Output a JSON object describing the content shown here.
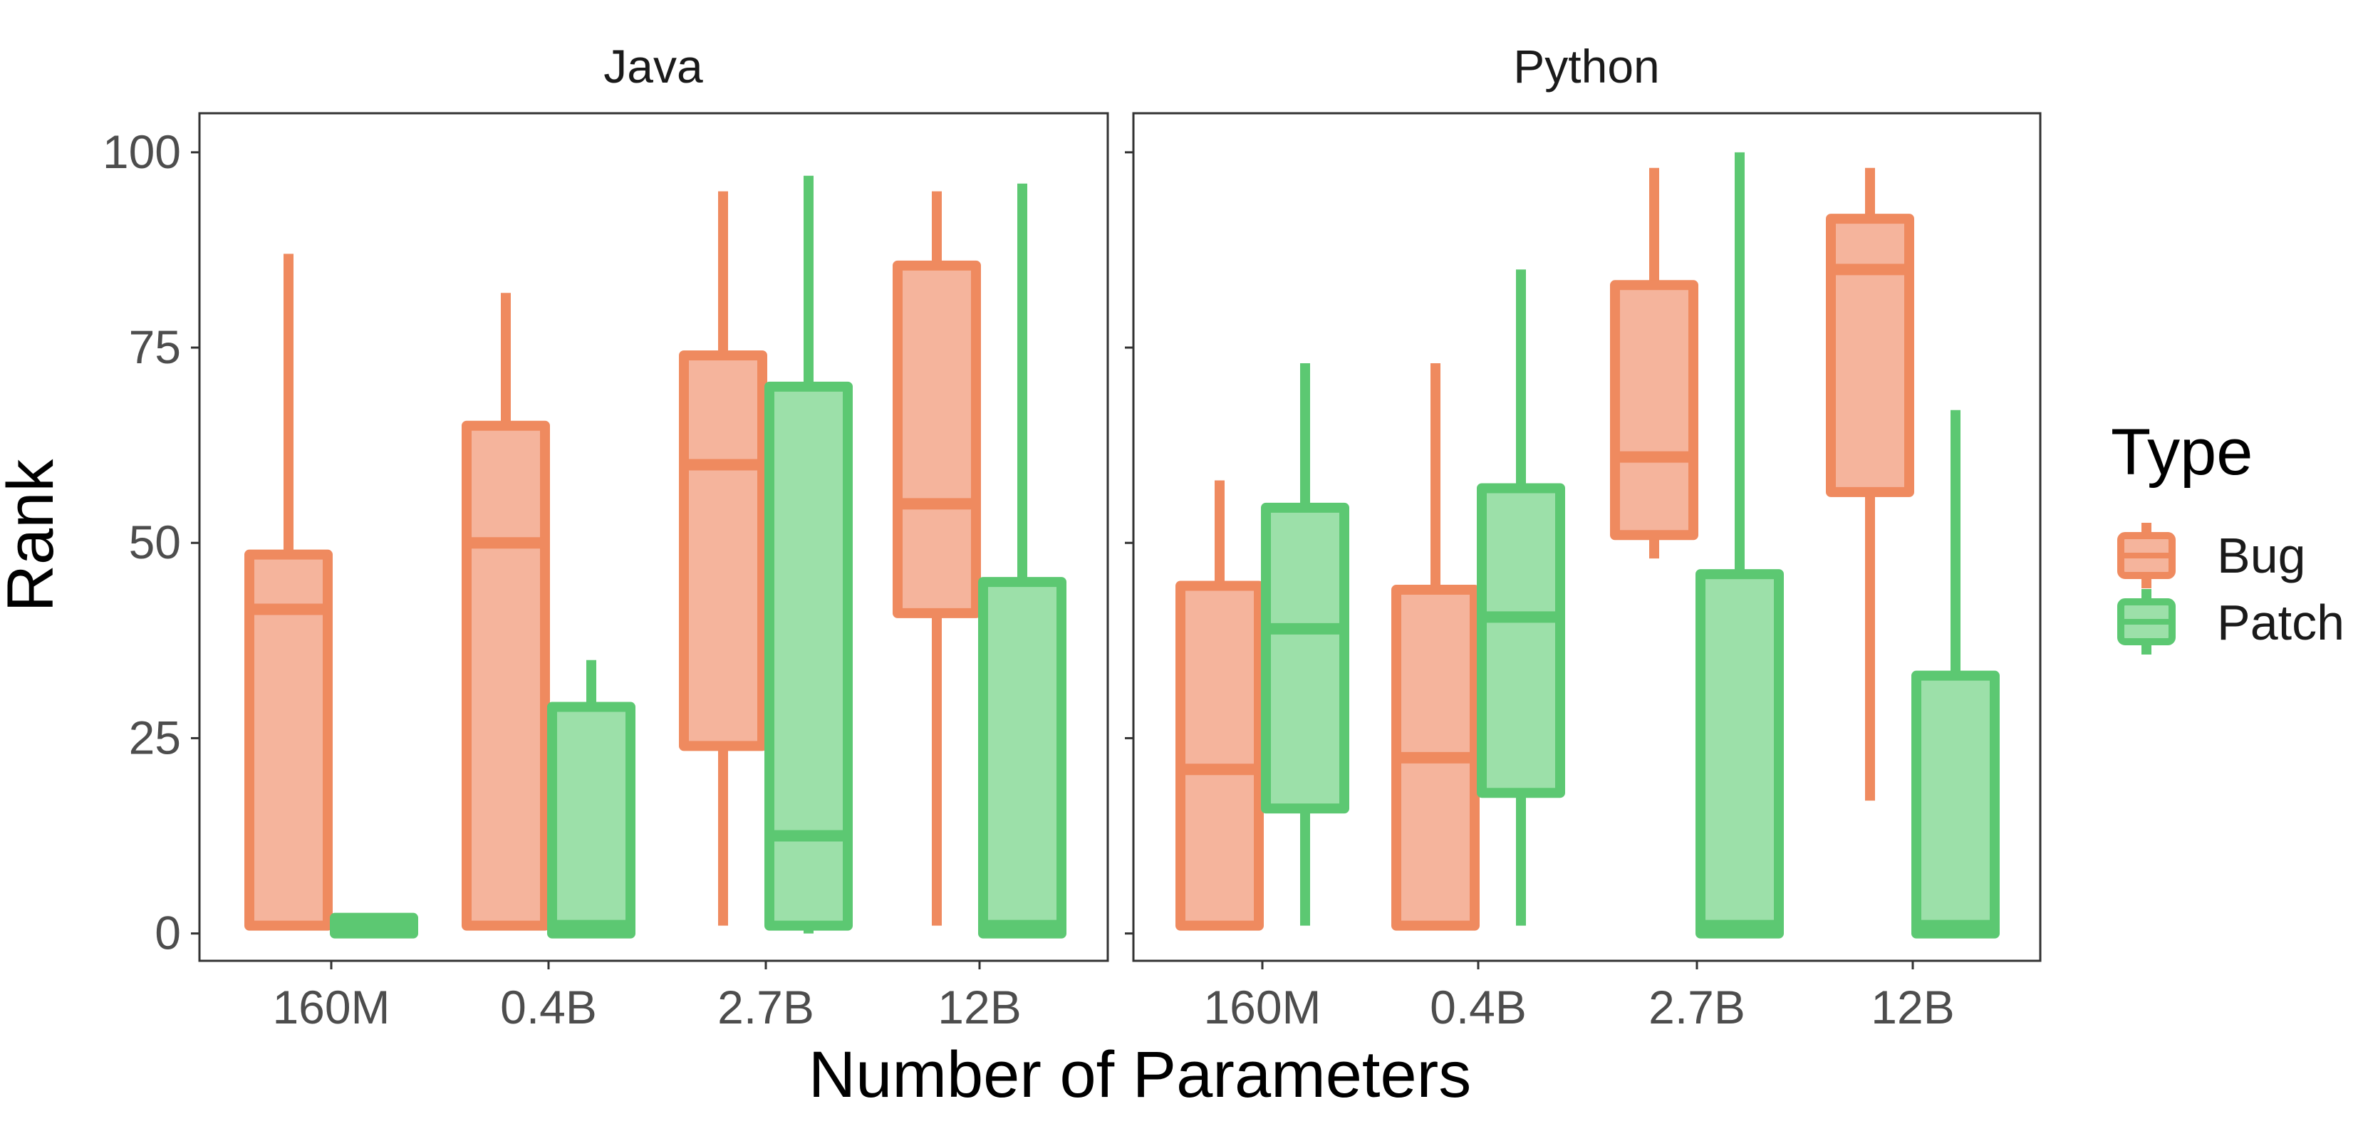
{
  "chart_data": {
    "type": "boxplot",
    "facet_titles": [
      "Java",
      "Python"
    ],
    "xlabel": "Number of Parameters",
    "ylabel": "Rank",
    "categories": [
      "160M",
      "0.4B",
      "2.7B",
      "12B"
    ],
    "y_ticks": [
      "0",
      "25",
      "50",
      "75",
      "100"
    ],
    "y_tick_values": [
      0,
      25,
      50,
      75,
      100
    ],
    "ylim": [
      -3.5,
      105
    ],
    "grid": false,
    "legend": {
      "title": "Type",
      "position": "right",
      "items": [
        "Bug",
        "Patch"
      ]
    },
    "colors": {
      "Bug": {
        "line": "#EF8A5F",
        "fill": "#F5B49C"
      },
      "Patch": {
        "line": "#5CC872",
        "fill": "#9CE0A9"
      }
    },
    "facets": [
      {
        "title": "Java",
        "boxes": [
          {
            "category": "160M",
            "series": "Bug",
            "min": 1,
            "q1": 1,
            "median": 41.5,
            "q3": 48.5,
            "max": 87
          },
          {
            "category": "160M",
            "series": "Patch",
            "min": 0,
            "q1": 0,
            "median": 1,
            "q3": 2,
            "max": 2
          },
          {
            "category": "0.4B",
            "series": "Bug",
            "min": 1,
            "q1": 1,
            "median": 50,
            "q3": 65,
            "max": 82
          },
          {
            "category": "0.4B",
            "series": "Patch",
            "min": 0,
            "q1": 0,
            "median": 1,
            "q3": 29,
            "max": 35
          },
          {
            "category": "2.7B",
            "series": "Bug",
            "min": 1,
            "q1": 24,
            "median": 60,
            "q3": 74,
            "max": 95
          },
          {
            "category": "2.7B",
            "series": "Patch",
            "min": 0,
            "q1": 1,
            "median": 12.5,
            "q3": 70,
            "max": 97
          },
          {
            "category": "12B",
            "series": "Bug",
            "min": 1,
            "q1": 41,
            "median": 55,
            "q3": 85.5,
            "max": 95
          },
          {
            "category": "12B",
            "series": "Patch",
            "min": 0,
            "q1": 0,
            "median": 1,
            "q3": 45,
            "max": 96
          }
        ]
      },
      {
        "title": "Python",
        "boxes": [
          {
            "category": "160M",
            "series": "Bug",
            "min": 1,
            "q1": 1,
            "median": 21,
            "q3": 44.5,
            "max": 58
          },
          {
            "category": "160M",
            "series": "Patch",
            "min": 1,
            "q1": 16,
            "median": 39,
            "q3": 54.5,
            "max": 73
          },
          {
            "category": "0.4B",
            "series": "Bug",
            "min": 1,
            "q1": 1,
            "median": 22.5,
            "q3": 44,
            "max": 73
          },
          {
            "category": "0.4B",
            "series": "Patch",
            "min": 1,
            "q1": 18,
            "median": 40.5,
            "q3": 57,
            "max": 85
          },
          {
            "category": "2.7B",
            "series": "Bug",
            "min": 48,
            "q1": 51,
            "median": 61,
            "q3": 83,
            "max": 98
          },
          {
            "category": "2.7B",
            "series": "Patch",
            "min": 0,
            "q1": 0,
            "median": 1,
            "q3": 46,
            "max": 100
          },
          {
            "category": "12B",
            "series": "Bug",
            "min": 17,
            "q1": 56.5,
            "median": 85,
            "q3": 91.5,
            "max": 98
          },
          {
            "category": "12B",
            "series": "Patch",
            "min": 0,
            "q1": 0,
            "median": 1,
            "q3": 33,
            "max": 67
          }
        ]
      }
    ]
  }
}
